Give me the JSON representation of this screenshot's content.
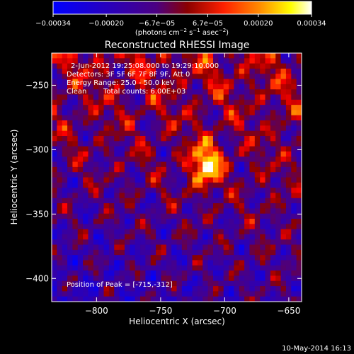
{
  "chart_data": {
    "type": "heatmap",
    "title": "Reconstructed RHESSI Image",
    "xlabel": "Heliocentric X (arcsec)",
    "ylabel": "Heliocentric Y (arcsec)",
    "xlim": [
      -835,
      -640
    ],
    "ylim": [
      -418,
      -225
    ],
    "x_ticks": [
      -800,
      -750,
      -700,
      -650
    ],
    "x_tick_labels": [
      "−800",
      "−750",
      "−700",
      "−650"
    ],
    "y_ticks": [
      -250,
      -300,
      -350,
      -400
    ],
    "y_tick_labels": [
      "−250",
      "−300",
      "−350",
      "−400"
    ],
    "colorbar": {
      "range": [
        -0.00034,
        0.00034
      ],
      "ticks": [
        -0.00034,
        -0.0002,
        -6.7e-05,
        6.7e-05,
        0.0002,
        0.00034
      ],
      "tick_labels": [
        "−0.00034",
        "−0.00020",
        "−6.7e−05",
        "6.7e−05",
        "0.00020",
        "0.00034"
      ],
      "unit_main": "(photons cm",
      "unit_sup1": "−2",
      "unit_mid": " s",
      "unit_sup2": "−1",
      "unit_end": " asec",
      "unit_sup3": "−2",
      "unit_close": ")",
      "colors": [
        "#0000ff",
        "#4b0082",
        "#8b0000",
        "#ff0000",
        "#ff8c00",
        "#ffff00",
        "#ffffff"
      ]
    },
    "annotations": {
      "time_range": "2-Jun-2012 19:25:08.000 to 19:29:10.000",
      "detectors": "Detectors: 3F 5F 6F 7F 8F 9F, Att 0",
      "energy": "Energy Range: 25.0 - 50.0 keV",
      "clean": "Clean",
      "counts": "Total counts: 6.00E+03",
      "peak": "Position of Peak = [-715,-312]"
    },
    "peak": [
      -715,
      -312
    ],
    "footer_date": "10-May-2014 16:13"
  }
}
